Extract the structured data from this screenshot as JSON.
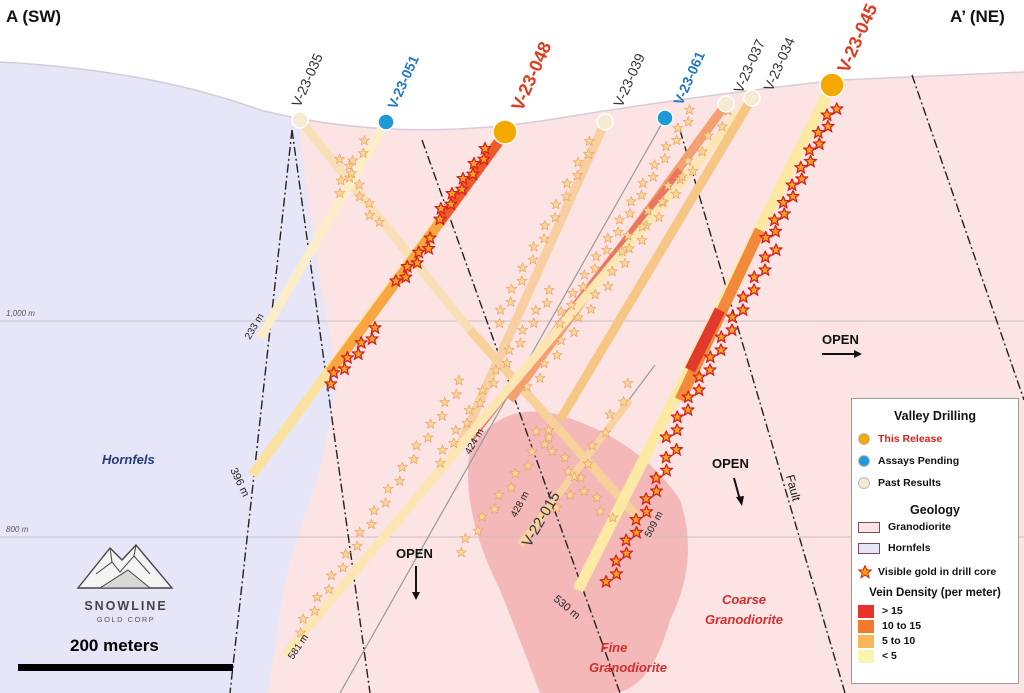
{
  "section": {
    "left_label": "A (SW)",
    "right_label": "A’ (NE)"
  },
  "elevations": [
    "1,000 m",
    "800 m"
  ],
  "units": [
    {
      "name": "Hornfels"
    },
    {
      "name": "Fine Granodiorite",
      "lines": [
        "Fine",
        "Granodiorite"
      ]
    },
    {
      "name": "Coarse Granodiorite",
      "lines": [
        "Coarse",
        "Granodiorite"
      ]
    }
  ],
  "holes": [
    {
      "id": "V-23-035",
      "status": "Past Results",
      "depth": "233 m"
    },
    {
      "id": "V-23-051",
      "status": "Assays Pending"
    },
    {
      "id": "V-23-048",
      "status": "This Release",
      "depth": "396 m"
    },
    {
      "id": "V-23-039",
      "status": "Past Results",
      "depth": "424 m"
    },
    {
      "id": "V-23-061",
      "status": "Assays Pending",
      "depth": "581 m"
    },
    {
      "id": "V-23-037",
      "status": "Past Results",
      "depth": "428 m"
    },
    {
      "id": "V-23-034",
      "status": "Past Results",
      "depth": "509 m"
    },
    {
      "id": "V-23-045",
      "status": "This Release",
      "depth": "530 m"
    },
    {
      "id": "V-22-015",
      "status": "Past Results"
    }
  ],
  "annotations": {
    "open": "OPEN",
    "fault": "Fault"
  },
  "legend": {
    "title": "Valley Drilling",
    "drilling": [
      {
        "label": "This Release",
        "color": "#f5a800",
        "label_color": "#e02020"
      },
      {
        "label": "Assays Pending",
        "color": "#1e9ad6",
        "label_color": "#111111"
      },
      {
        "label": "Past Results",
        "color": "#f7ead2",
        "label_color": "#111111"
      }
    ],
    "geology_title": "Geology",
    "geology": [
      {
        "label": "Granodiorite",
        "color": "#fde4e4"
      },
      {
        "label": "Hornfels",
        "color": "#e6e6f8"
      }
    ],
    "visible_gold": "Visible gold in drill core",
    "vein_title": "Vein Density (per meter)",
    "vein_density": [
      {
        "label": "> 15",
        "color": "#e8312a"
      },
      {
        "label": "10 to 15",
        "color": "#f37a2c"
      },
      {
        "label": "5 to 10",
        "color": "#f8b85a"
      },
      {
        "label": "< 5",
        "color": "#fbf3b0"
      }
    ]
  },
  "logo": {
    "name": "SNOWLINE",
    "sub": "GOLD CORP"
  },
  "scale": {
    "label": "200 meters"
  }
}
